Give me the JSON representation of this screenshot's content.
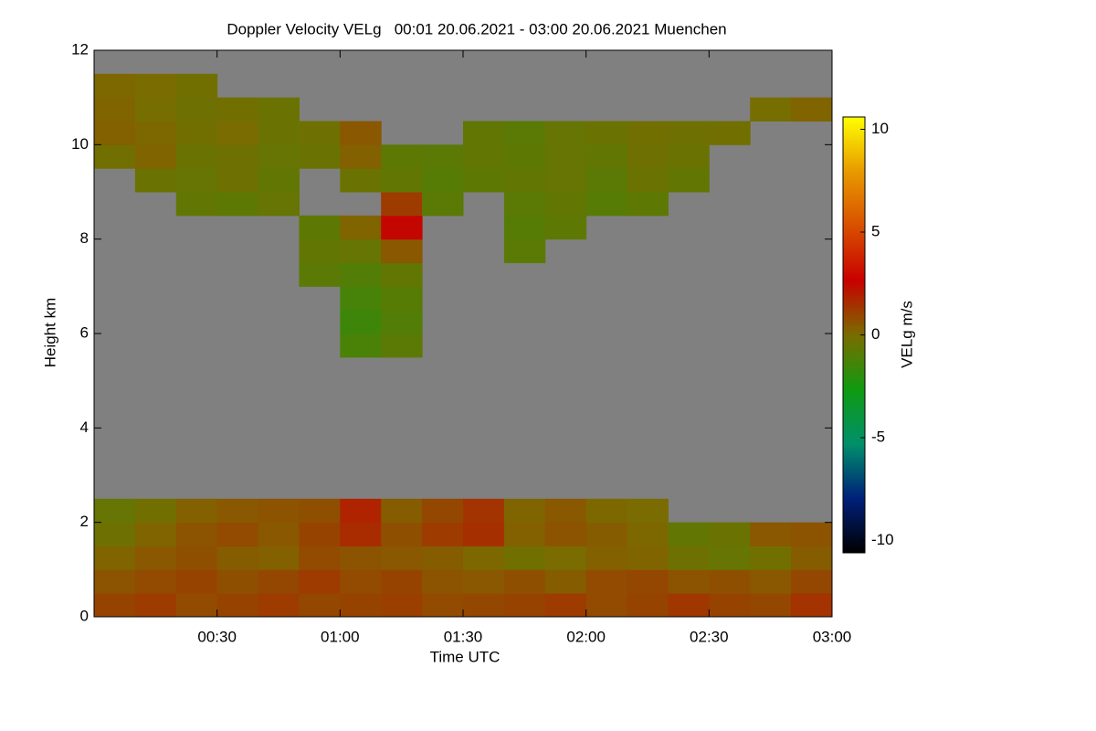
{
  "chart_data": {
    "type": "heatmap",
    "title": "Doppler Velocity VELg   00:01 20.06.2021 - 03:00 20.06.2021 Muenchen",
    "x_label": "Time UTC",
    "y_label": "Height km",
    "colorbar_label": "VELg m/s",
    "xlim": [
      0,
      180
    ],
    "xticks": [
      {
        "value": 30,
        "label": "00:30"
      },
      {
        "value": 60,
        "label": "01:00"
      },
      {
        "value": 90,
        "label": "01:30"
      },
      {
        "value": 120,
        "label": "02:00"
      },
      {
        "value": 150,
        "label": "02:30"
      },
      {
        "value": 180,
        "label": "03:00"
      }
    ],
    "ylim": [
      0,
      12
    ],
    "yticks": [
      0,
      2,
      4,
      6,
      8,
      10,
      12
    ],
    "clim": [
      -10.6,
      10.6
    ],
    "cticks": [
      -10,
      -5,
      0,
      5,
      10
    ],
    "colors": [
      "#000000",
      "#00207a",
      "#00906a",
      "#109a10",
      "#7a6c00",
      "#c80000",
      "#d85000",
      "#e89a00",
      "#ffff00"
    ],
    "background": "#808080",
    "z": [
      [
        1,
        1.2,
        0.8,
        1,
        1.2,
        0.9,
        1,
        1.1,
        0.8,
        0.9,
        1,
        1.2,
        0.8,
        1,
        1.3,
        1,
        0.9,
        1.4
      ],
      [
        0.6,
        0.8,
        1,
        0.7,
        0.9,
        1.2,
        0.8,
        1,
        0.6,
        0.5,
        0.7,
        0.4,
        0.8,
        0.9,
        0.6,
        0.7,
        0.5,
        0.9
      ],
      [
        0.2,
        0.5,
        0.7,
        0.4,
        0.3,
        0.8,
        0.6,
        0.5,
        0.4,
        0.1,
        -0.2,
        0,
        0.3,
        0.2,
        -0.3,
        -0.5,
        -0.2,
        0.4
      ],
      [
        -0.3,
        0.2,
        0.6,
        0.8,
        0.5,
        1.0,
        1.6,
        0.7,
        1.2,
        1.5,
        0.3,
        0.6,
        0.4,
        0.1,
        -0.6,
        -0.4,
        0.5,
        0.6
      ],
      [
        -0.5,
        -0.2,
        0.3,
        0.5,
        0.6,
        0.7,
        1.8,
        0.4,
        0.9,
        1.4,
        0.2,
        0.5,
        0.1,
        0,
        null,
        null,
        null,
        null
      ],
      [
        null,
        null,
        null,
        null,
        null,
        null,
        null,
        null,
        null,
        null,
        null,
        null,
        null,
        null,
        null,
        null,
        null,
        null
      ],
      [
        null,
        null,
        null,
        null,
        null,
        null,
        null,
        null,
        null,
        null,
        null,
        null,
        null,
        null,
        null,
        null,
        null,
        null
      ],
      [
        null,
        null,
        null,
        null,
        null,
        null,
        null,
        null,
        null,
        null,
        null,
        null,
        null,
        null,
        null,
        null,
        null,
        null
      ],
      [
        null,
        null,
        null,
        null,
        null,
        null,
        null,
        null,
        null,
        null,
        null,
        null,
        null,
        null,
        null,
        null,
        null,
        null
      ],
      [
        null,
        null,
        null,
        null,
        null,
        null,
        null,
        null,
        null,
        null,
        null,
        null,
        null,
        null,
        null,
        null,
        null,
        null
      ],
      [
        null,
        null,
        null,
        null,
        null,
        null,
        null,
        null,
        null,
        null,
        null,
        null,
        null,
        null,
        null,
        null,
        null,
        null
      ],
      [
        null,
        null,
        null,
        null,
        null,
        null,
        -1.2,
        -0.8,
        null,
        null,
        null,
        null,
        null,
        null,
        null,
        null,
        null,
        null
      ],
      [
        null,
        null,
        null,
        null,
        null,
        null,
        -1.5,
        -1.0,
        null,
        null,
        null,
        null,
        null,
        null,
        null,
        null,
        null,
        null
      ],
      [
        null,
        null,
        null,
        null,
        null,
        null,
        -1.3,
        -0.9,
        null,
        null,
        null,
        null,
        null,
        null,
        null,
        null,
        null,
        null
      ],
      [
        null,
        null,
        null,
        null,
        null,
        -0.8,
        -1,
        -0.6,
        null,
        null,
        null,
        null,
        null,
        null,
        null,
        null,
        null,
        null
      ],
      [
        null,
        null,
        null,
        null,
        null,
        -0.6,
        -0.5,
        0.5,
        null,
        null,
        -0.8,
        null,
        null,
        null,
        null,
        null,
        null,
        null
      ],
      [
        null,
        null,
        null,
        null,
        null,
        -0.7,
        0.2,
        2.5,
        null,
        null,
        -0.9,
        -0.7,
        null,
        null,
        null,
        null,
        null,
        null
      ],
      [
        null,
        null,
        -0.6,
        -0.7,
        -0.5,
        null,
        null,
        1.2,
        -0.8,
        null,
        -0.8,
        -0.6,
        -0.9,
        -0.7,
        null,
        null,
        null,
        null
      ],
      [
        null,
        -0.4,
        -0.5,
        -0.3,
        -0.6,
        null,
        -0.4,
        -0.6,
        -0.9,
        -0.7,
        -0.6,
        -0.5,
        -0.8,
        -0.4,
        -0.6,
        null,
        null,
        null
      ],
      [
        -0.2,
        0.2,
        -0.4,
        -0.3,
        -0.5,
        -0.4,
        0.3,
        -0.7,
        -0.8,
        -0.6,
        -0.7,
        -0.5,
        -0.6,
        -0.3,
        -0.4,
        null,
        null,
        null
      ],
      [
        0.3,
        0.1,
        -0.2,
        0,
        -0.4,
        -0.3,
        0.5,
        null,
        null,
        -0.6,
        -0.8,
        -0.5,
        -0.4,
        -0.2,
        -0.3,
        -0.2,
        null,
        null
      ],
      [
        0.2,
        -0.1,
        -0.3,
        -0.2,
        -0.4,
        null,
        null,
        null,
        null,
        null,
        null,
        null,
        null,
        null,
        null,
        null,
        -0.1,
        0.2
      ],
      [
        0.1,
        0,
        -0.2,
        null,
        null,
        null,
        null,
        null,
        null,
        null,
        null,
        null,
        null,
        null,
        null,
        null,
        null,
        null
      ],
      [
        null,
        null,
        null,
        null,
        null,
        null,
        null,
        null,
        null,
        null,
        null,
        null,
        null,
        null,
        null,
        null,
        null,
        null
      ]
    ]
  }
}
